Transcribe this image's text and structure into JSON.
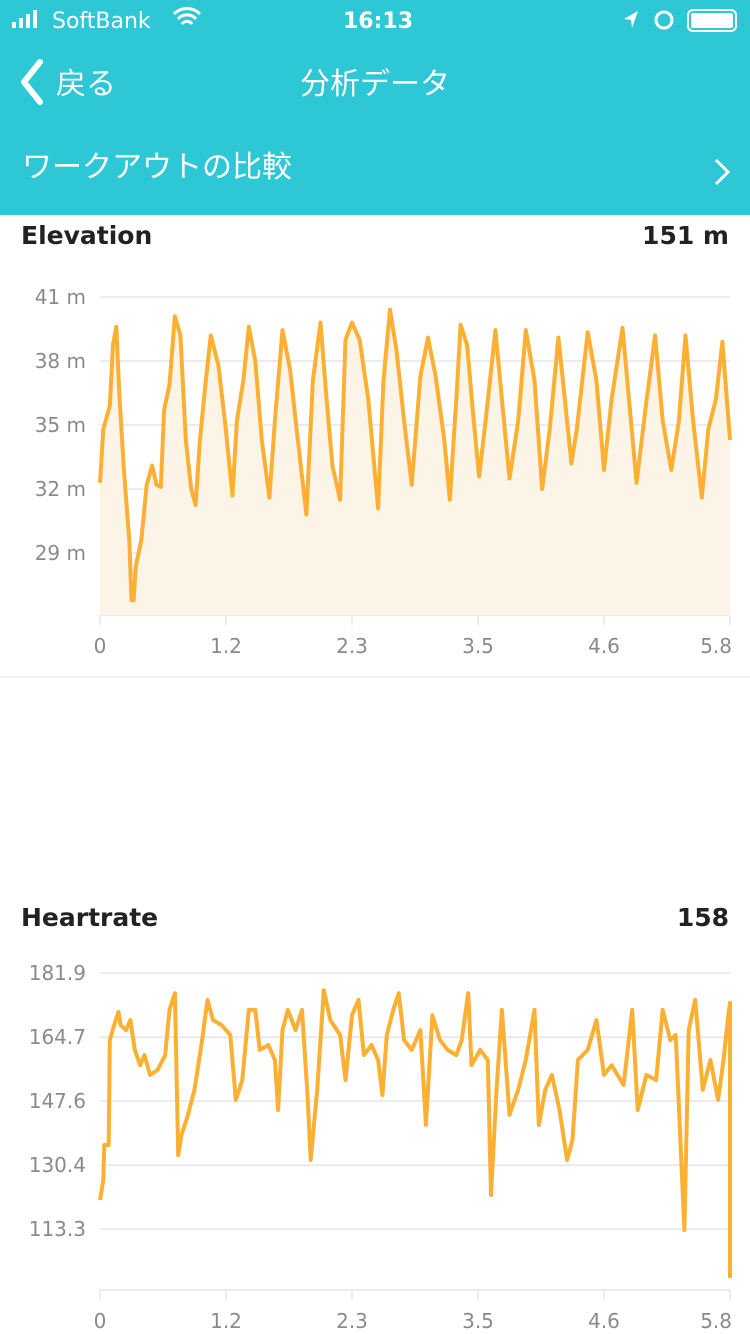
{
  "status_bar": {
    "carrier": "SoftBank",
    "time": "16:13"
  },
  "nav": {
    "back": "戻る",
    "title": "分析データ"
  },
  "compare_row": {
    "label": "ワークアウトの比較"
  },
  "chart_data": [
    {
      "type": "area",
      "title": "Elevation",
      "summary": "151 m",
      "color": "#fbb034",
      "fill_color": "#fdf4e8",
      "grid": true,
      "x": [
        0,
        0.03,
        0.09,
        0.12,
        0.15,
        0.18,
        0.22,
        0.27,
        0.29,
        0.31,
        0.33,
        0.38,
        0.43,
        0.48,
        0.52,
        0.56,
        0.59,
        0.64,
        0.69,
        0.74,
        0.79,
        0.84,
        0.88,
        0.92,
        0.97,
        1.02,
        1.09,
        1.15,
        1.22,
        1.26,
        1.32,
        1.37,
        1.43,
        1.49,
        1.56,
        1.61,
        1.68,
        1.75,
        1.81,
        1.9,
        1.96,
        2.03,
        2.08,
        2.14,
        2.21,
        2.26,
        2.32,
        2.39,
        2.47,
        2.56,
        2.61,
        2.67,
        2.73,
        2.8,
        2.87,
        2.95,
        3.02,
        3.09,
        3.17,
        3.22,
        3.28,
        3.32,
        3.38,
        3.44,
        3.49,
        3.55,
        3.64,
        3.7,
        3.77,
        3.85,
        3.92,
        4.0,
        4.07,
        4.14,
        4.22,
        4.28,
        4.34,
        4.39,
        4.49,
        4.57,
        4.64,
        4.71,
        4.81,
        4.87,
        4.94,
        5.02,
        5.11,
        5.18,
        5.26,
        5.33,
        5.39,
        5.46,
        5.54,
        5.6,
        5.67,
        5.73,
        5.8
      ],
      "values": [
        32.3,
        34.8,
        35.9,
        38.75,
        39.6,
        36.2,
        32.9,
        29.6,
        26.8,
        26.8,
        28.4,
        29.6,
        32.2,
        33.1,
        32.2,
        32.1,
        35.7,
        36.9,
        40.1,
        39.2,
        34.3,
        32.0,
        31.25,
        34.3,
        36.9,
        39.2,
        37.8,
        35.2,
        31.7,
        35.2,
        37.1,
        39.6,
        38.0,
        34.3,
        31.6,
        35.2,
        39.45,
        37.6,
        34.8,
        30.8,
        37.1,
        39.8,
        36.6,
        33.1,
        31.5,
        39.0,
        39.8,
        39.0,
        36.2,
        31.1,
        37.1,
        40.4,
        38.5,
        35.2,
        32.2,
        37.3,
        39.1,
        37.3,
        34.3,
        31.5,
        36.2,
        39.7,
        38.75,
        35.2,
        32.6,
        35.2,
        39.45,
        36.2,
        32.5,
        35.2,
        39.45,
        37.1,
        32.0,
        34.8,
        39.1,
        36.2,
        33.2,
        34.8,
        39.35,
        37.1,
        32.9,
        36.2,
        39.55,
        36.2,
        32.3,
        35.7,
        39.2,
        35.2,
        32.9,
        35.2,
        39.2,
        35.2,
        31.6,
        34.8,
        36.2,
        38.9,
        34.3
      ],
      "xlim": [
        0,
        5.8
      ],
      "xticks": [
        0,
        {
          "value": 1.16,
          "label": "1.2"
        },
        {
          "value": 2.32,
          "label": "2.3"
        },
        {
          "value": 3.48,
          "label": "3.5"
        },
        {
          "value": 4.64,
          "label": "4.6"
        },
        5.8
      ],
      "ylim": [
        26.1,
        41
      ],
      "yticks": [
        {
          "value": 41,
          "label": "41 m"
        },
        {
          "value": 38,
          "label": "38 m"
        },
        {
          "value": 35,
          "label": "35 m"
        },
        {
          "value": 32,
          "label": "32 m"
        },
        {
          "value": 29,
          "label": "29 m"
        }
      ]
    },
    {
      "type": "line",
      "title": "Heartrate",
      "summary": "158",
      "color": "#fbb034",
      "grid": true,
      "x": [
        0,
        0.03,
        0.04,
        0.08,
        0.09,
        0.13,
        0.17,
        0.19,
        0.24,
        0.28,
        0.32,
        0.37,
        0.41,
        0.46,
        0.53,
        0.6,
        0.64,
        0.69,
        0.72,
        0.75,
        0.81,
        0.87,
        0.94,
        0.99,
        1.04,
        1.12,
        1.2,
        1.25,
        1.31,
        1.37,
        1.43,
        1.47,
        1.55,
        1.61,
        1.64,
        1.68,
        1.73,
        1.8,
        1.86,
        1.91,
        1.94,
        2.0,
        2.06,
        2.12,
        2.21,
        2.26,
        2.32,
        2.38,
        2.43,
        2.5,
        2.56,
        2.6,
        2.64,
        2.7,
        2.75,
        2.8,
        2.87,
        2.95,
        3.0,
        3.06,
        3.13,
        3.2,
        3.28,
        3.33,
        3.39,
        3.42,
        3.5,
        3.57,
        3.6,
        3.65,
        3.7,
        3.77,
        3.85,
        3.92,
        4.0,
        4.04,
        4.1,
        4.16,
        4.23,
        4.3,
        4.35,
        4.4,
        4.49,
        4.57,
        4.64,
        4.71,
        4.82,
        4.9,
        4.95,
        5.03,
        5.12,
        5.18,
        5.25,
        5.3,
        5.38,
        5.42,
        5.48,
        5.55,
        5.62,
        5.69,
        5.74,
        5.78,
        5.8,
        5.8
      ],
      "values": [
        121.1,
        126.4,
        135.8,
        135.8,
        163.9,
        167.9,
        171.5,
        167.9,
        166.6,
        169.3,
        161.3,
        157.2,
        159.9,
        154.6,
        155.9,
        159.9,
        172.0,
        176.5,
        133.1,
        138.5,
        143.9,
        150.6,
        163.9,
        174.7,
        169.3,
        167.9,
        165.3,
        147.9,
        153.2,
        172.0,
        172.0,
        161.3,
        162.6,
        158.6,
        145.2,
        166.6,
        172.0,
        166.6,
        172.0,
        149.2,
        131.8,
        150.6,
        177.3,
        169.3,
        165.3,
        153.2,
        170.6,
        174.7,
        159.9,
        162.6,
        158.6,
        149.2,
        165.3,
        172.0,
        176.5,
        163.9,
        161.3,
        166.6,
        141.2,
        170.6,
        163.9,
        161.3,
        159.9,
        163.9,
        176.5,
        157.2,
        161.3,
        158.6,
        122.4,
        150.6,
        172.0,
        143.9,
        150.6,
        158.6,
        172.0,
        141.2,
        150.6,
        154.6,
        145.2,
        131.8,
        137.2,
        158.6,
        161.3,
        169.3,
        154.6,
        157.2,
        151.9,
        172.0,
        145.2,
        154.6,
        153.2,
        172.0,
        163.9,
        165.3,
        113.0,
        166.6,
        174.7,
        150.6,
        158.6,
        147.9,
        158.6,
        169.3,
        173.9,
        100.2
      ],
      "xlim": [
        0,
        5.8
      ],
      "xticks": [
        0,
        {
          "value": 1.16,
          "label": "1.2"
        },
        {
          "value": 2.32,
          "label": "2.3"
        },
        {
          "value": 3.48,
          "label": "3.5"
        },
        {
          "value": 4.64,
          "label": "4.6"
        },
        5.8
      ],
      "ylim": [
        96.96,
        181.9
      ],
      "yticks": [
        181.9,
        164.7,
        147.6,
        130.4,
        113.3
      ]
    }
  ]
}
